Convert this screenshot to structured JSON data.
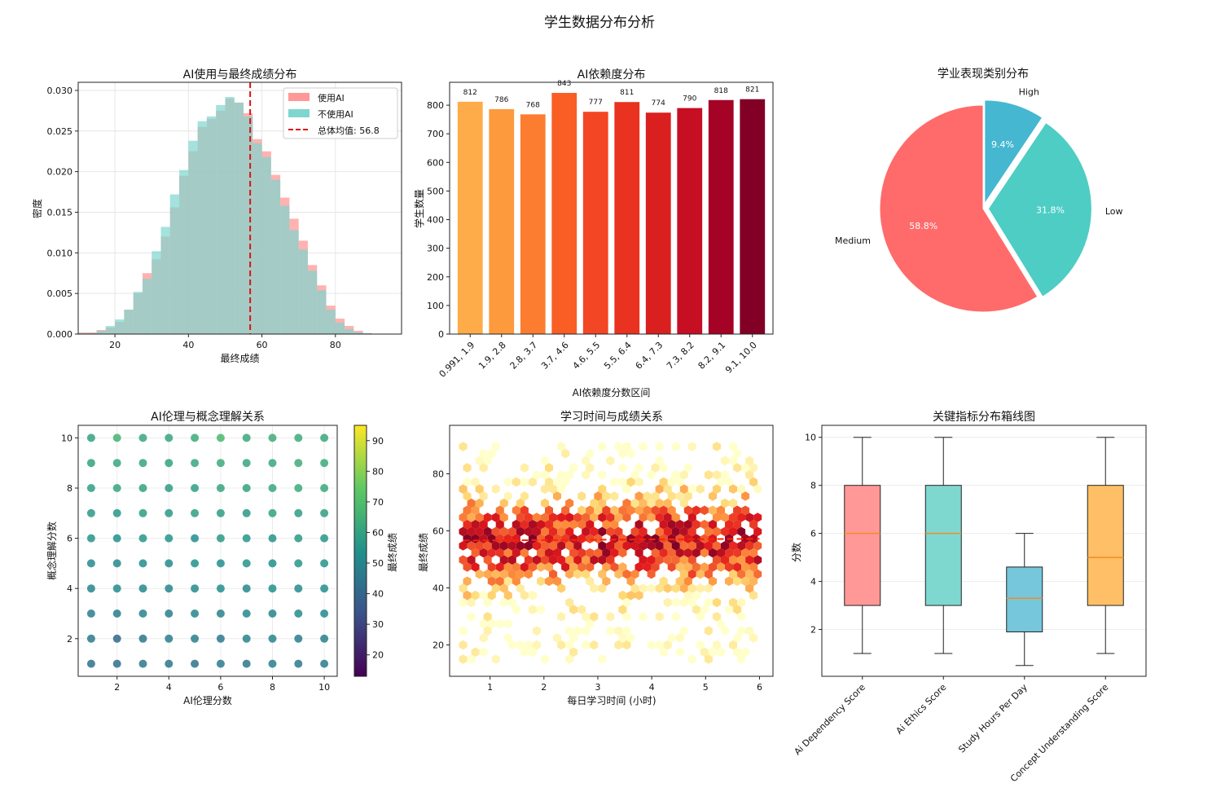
{
  "suptitle": "学生数据分布分析",
  "charts": {
    "hist": {
      "type": "histogram",
      "title": "AI使用与最终成绩分布",
      "xlabel": "最终成绩",
      "ylabel": "密度",
      "xlim": [
        10,
        98
      ],
      "ylim": [
        0,
        0.031
      ],
      "xticks": [
        20,
        40,
        60,
        80
      ],
      "yticks": [
        0,
        0.005,
        0.01,
        0.015,
        0.02,
        0.025,
        0.03
      ],
      "ytick_labels": [
        "0.000",
        "0.005",
        "0.010",
        "0.015",
        "0.020",
        "0.025",
        "0.030"
      ],
      "bin_start": 10,
      "bin_width": 2.5,
      "series": [
        {
          "name": "使用AI",
          "color": "#FF9896",
          "values": [
            0.0002,
            0.0002,
            0.0005,
            0.0008,
            0.0015,
            0.003,
            0.005,
            0.0075,
            0.0092,
            0.012,
            0.0156,
            0.0195,
            0.0225,
            0.0255,
            0.0265,
            0.0275,
            0.029,
            0.0285,
            0.0272,
            0.024,
            0.0225,
            0.0196,
            0.0168,
            0.0142,
            0.0115,
            0.0085,
            0.006,
            0.0035,
            0.0019,
            0.001,
            0.0004,
            0.0001
          ]
        },
        {
          "name": "不使用AI",
          "color": "#7ED6CF",
          "values": [
            0.0001,
            0.0001,
            0.0004,
            0.001,
            0.0018,
            0.003,
            0.0052,
            0.0068,
            0.0102,
            0.0132,
            0.0172,
            0.0202,
            0.0238,
            0.0262,
            0.0268,
            0.0282,
            0.0292,
            0.0285,
            0.0268,
            0.0235,
            0.0218,
            0.019,
            0.0158,
            0.0128,
            0.0104,
            0.0078,
            0.0054,
            0.003,
            0.0014,
            0.0006,
            0.0002,
            0.0001
          ]
        }
      ],
      "mean_line": {
        "x": 56.8,
        "label": "总体均值: 56.8",
        "color": "#DD1111"
      }
    },
    "bar": {
      "type": "bar",
      "title": "AI依赖度分布",
      "xlabel": "AI依赖度分数区间",
      "ylabel": "学生数量",
      "ylim": [
        0,
        880
      ],
      "yticks": [
        0,
        100,
        200,
        300,
        400,
        500,
        600,
        700,
        800
      ],
      "categories": [
        "0.991, 1.9",
        "1.9, 2.8",
        "2.8, 3.7",
        "3.7, 4.6",
        "4.6, 5.5",
        "5.5, 6.4",
        "6.4, 7.3",
        "7.3, 8.2",
        "8.2, 9.1",
        "9.1, 10.0"
      ],
      "values": [
        812,
        786,
        768,
        843,
        777,
        811,
        774,
        790,
        818,
        821
      ],
      "value_labels": [
        "812",
        "786",
        "768",
        "843",
        "777",
        "811",
        "774",
        "790",
        "818",
        "821"
      ],
      "colors": [
        "#FEAB4A",
        "#FD9A3E",
        "#FC7D30",
        "#F95E25",
        "#F34625",
        "#E9321F",
        "#D9201E",
        "#C60F22",
        "#A40325",
        "#820026"
      ]
    },
    "pie": {
      "type": "pie",
      "title": "学业表现类别分布",
      "labels": [
        "High",
        "Low",
        "Medium"
      ],
      "values": [
        9.4,
        31.8,
        58.8
      ],
      "pct_labels": [
        "9.4%",
        "31.8%",
        "58.8%"
      ],
      "colors": [
        "#45B7D1",
        "#4ECDC4",
        "#FF6B6B"
      ],
      "explode": [
        0.05,
        0.05,
        0
      ]
    },
    "scatter": {
      "type": "scatter",
      "title": "AI伦理与概念理解关系",
      "xlabel": "AI伦理分数",
      "ylabel": "概念理解分数",
      "xlim": [
        0.5,
        10.5
      ],
      "ylim": [
        0.5,
        10.5
      ],
      "xticks": [
        2,
        4,
        6,
        8,
        10
      ],
      "yticks": [
        2,
        4,
        6,
        8,
        10
      ],
      "colorbar_label": "最终成绩",
      "colorbar_ticks": [
        20,
        30,
        40,
        50,
        60,
        70,
        80,
        90
      ],
      "colorbar_range": [
        13,
        95
      ],
      "grid_values": [
        [
          44,
          43,
          46,
          45,
          44,
          47,
          45,
          48,
          46,
          47
        ],
        [
          46,
          40,
          45,
          47,
          48,
          46,
          49,
          50,
          47,
          48
        ],
        [
          48,
          47,
          49,
          48,
          50,
          49,
          51,
          50,
          52,
          51
        ],
        [
          50,
          52,
          51,
          50,
          52,
          53,
          51,
          54,
          52,
          53
        ],
        [
          52,
          51,
          53,
          52,
          54,
          53,
          55,
          54,
          56,
          55
        ],
        [
          55,
          54,
          56,
          55,
          53,
          57,
          56,
          55,
          57,
          56
        ],
        [
          57,
          56,
          58,
          57,
          59,
          58,
          57,
          60,
          58,
          59
        ],
        [
          59,
          61,
          60,
          58,
          59,
          61,
          60,
          62,
          63,
          62
        ],
        [
          60,
          62,
          61,
          60,
          62,
          63,
          61,
          62,
          64,
          63
        ],
        [
          60,
          66,
          62,
          61,
          63,
          68,
          62,
          64,
          63,
          62
        ]
      ]
    },
    "hexbin": {
      "type": "hexbin",
      "title": "学习时间与成绩关系",
      "xlabel": "每日学习时间 (小时)",
      "ylabel": "最终成绩",
      "xlim": [
        0.25,
        6.25
      ],
      "ylim": [
        9,
        97
      ],
      "xticks": [
        1,
        2,
        3,
        4,
        5,
        6
      ],
      "yticks": [
        20,
        40,
        60,
        80
      ],
      "trend_line": {
        "x": [
          0.5,
          6.0
        ],
        "y": [
          56.6,
          57.2
        ],
        "color": "#FF2200"
      }
    },
    "box": {
      "type": "box",
      "title": "关键指标分布箱线图",
      "ylabel": "分数",
      "ylim": [
        0.05,
        10.5
      ],
      "yticks": [
        2,
        4,
        6,
        8,
        10
      ],
      "categories": [
        "Ai Dependency Score",
        "Ai Ethics Score",
        "Study Hours Per Day",
        "Concept Understanding Score"
      ],
      "series": [
        {
          "min": 1,
          "q1": 3,
          "median": 6,
          "q3": 8,
          "max": 10,
          "color": "#FF9896"
        },
        {
          "min": 1,
          "q1": 3,
          "median": 6,
          "q3": 8,
          "max": 10,
          "color": "#7FD8CF"
        },
        {
          "min": 0.5,
          "q1": 1.9,
          "median": 3.3,
          "q3": 4.6,
          "max": 6,
          "color": "#76C6DC"
        },
        {
          "min": 1,
          "q1": 3,
          "median": 5,
          "q3": 8,
          "max": 10,
          "color": "#FFBF66"
        }
      ]
    }
  }
}
